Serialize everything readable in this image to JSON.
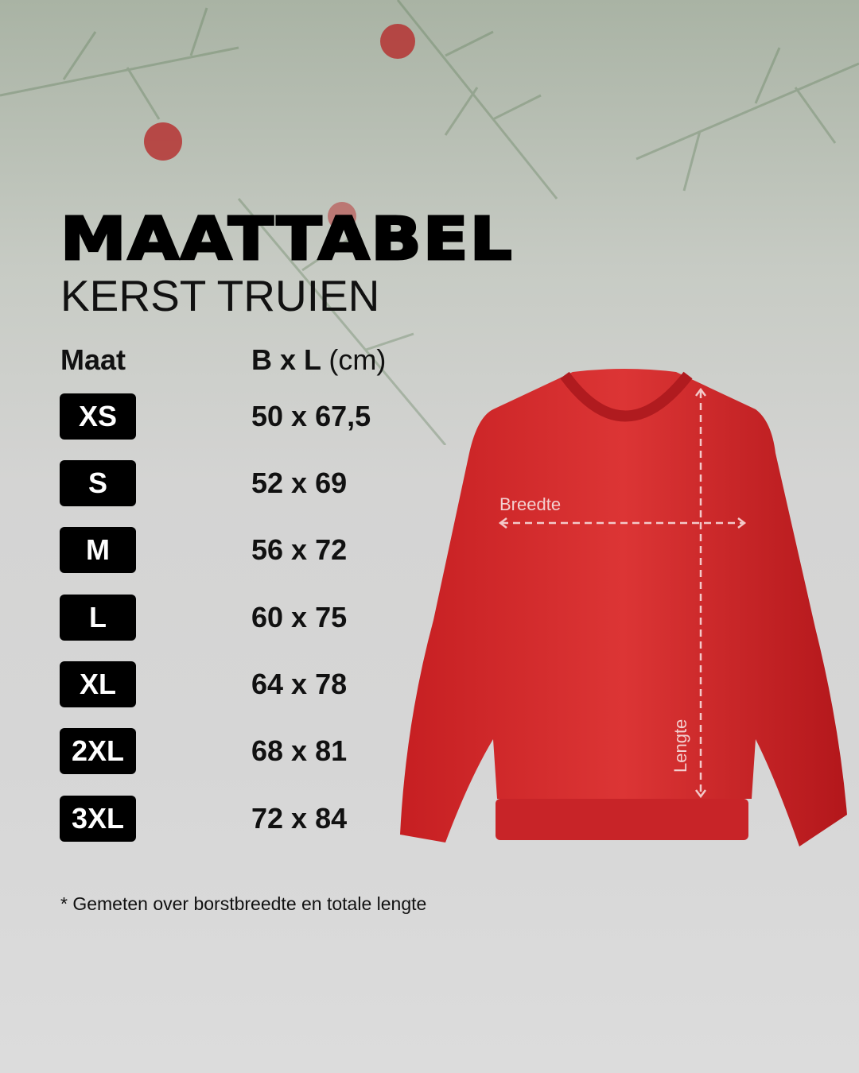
{
  "title": "MAATTABEL",
  "subtitle": "KERST TRUIEN",
  "table": {
    "col_size": "Maat",
    "col_dims_bold": "B x L",
    "col_dims_unit": "(cm)",
    "rows": [
      {
        "size": "XS",
        "dims": "50 x 67,5"
      },
      {
        "size": "S",
        "dims": "52 x 69"
      },
      {
        "size": "M",
        "dims": "56 x 72"
      },
      {
        "size": "L",
        "dims": "60 x 75"
      },
      {
        "size": "XL",
        "dims": "64 x 78"
      },
      {
        "size": "2XL",
        "dims": "68 x 81"
      },
      {
        "size": "3XL",
        "dims": "72 x 84"
      }
    ]
  },
  "diagram": {
    "width_label": "Breedte",
    "length_label": "Lengte",
    "garment_color": "#d42a2a"
  },
  "footnote": "* Gemeten over borstbreedte en totale lengte"
}
